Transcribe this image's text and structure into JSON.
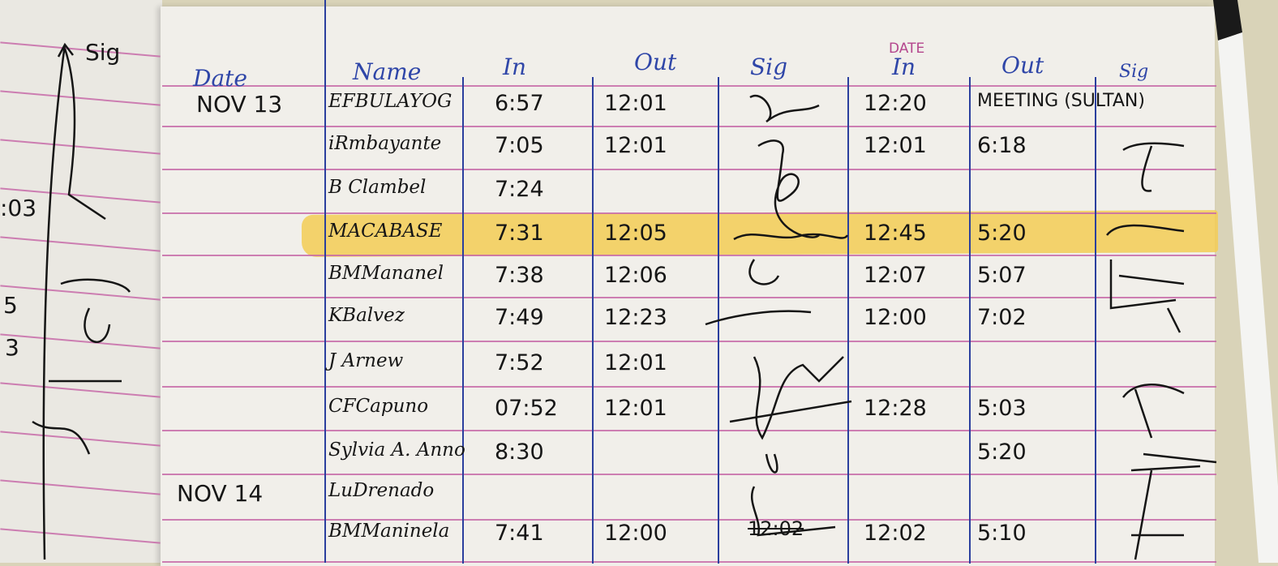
{
  "header": {
    "date": "Date",
    "name": "Name",
    "in": "In",
    "out": "Out",
    "sig": "Sig",
    "date_printed": "DATE",
    "in2": "In",
    "out2": "Out",
    "sig2": "Sig"
  },
  "left_page": {
    "sig_label": "Sig",
    "fragments": [
      ":03",
      "5",
      "3"
    ]
  },
  "highlight_color": "#f3cd55",
  "rows": [
    {
      "date": "NOV 13",
      "name": "EFBULAYOG",
      "in": "6:57",
      "out": "12:01",
      "in2": "12:20",
      "out2": "MEETING (SULTAN)",
      "highlighted": false
    },
    {
      "date": "",
      "name": "iRmbayante",
      "in": "7:05",
      "out": "12:01",
      "in2": "12:01",
      "out2": "6:18",
      "highlighted": false
    },
    {
      "date": "",
      "name": "B Clambel",
      "in": "7:24",
      "out": "",
      "in2": "",
      "out2": "",
      "highlighted": false
    },
    {
      "date": "",
      "name": "MACABASE",
      "in": "7:31",
      "out": "12:05",
      "in2": "12:45",
      "out2": "5:20",
      "highlighted": true
    },
    {
      "date": "",
      "name": "BMMananel",
      "in": "7:38",
      "out": "12:06",
      "in2": "12:07",
      "out2": "5:07",
      "highlighted": false
    },
    {
      "date": "",
      "name": "KBalvez",
      "in": "7:49",
      "out": "12:23",
      "in2": "12:00",
      "out2": "7:02",
      "highlighted": false
    },
    {
      "date": "",
      "name": "J Arnew",
      "in": "7:52",
      "out": "12:01",
      "in2": "",
      "out2": "",
      "highlighted": false
    },
    {
      "date": "",
      "name": "CFCapuno",
      "in": "07:52",
      "out": "12:01",
      "in2": "12:28",
      "out2": "5:03",
      "highlighted": false
    },
    {
      "date": "",
      "name": "Sylvia A. Anno",
      "in": "8:30",
      "out": "",
      "in2": "",
      "out2": "5:20",
      "highlighted": false
    },
    {
      "date": "NOV 14",
      "name": "LuDrenado",
      "in": "",
      "out": "",
      "in2": "",
      "out2": "",
      "highlighted": false
    },
    {
      "date": "",
      "name": "BMManinela",
      "in": "7:41",
      "out": "12:00",
      "in2": "12:02",
      "out2": "5:10",
      "highlighted": false
    }
  ],
  "crossed_out_text": "12:02"
}
